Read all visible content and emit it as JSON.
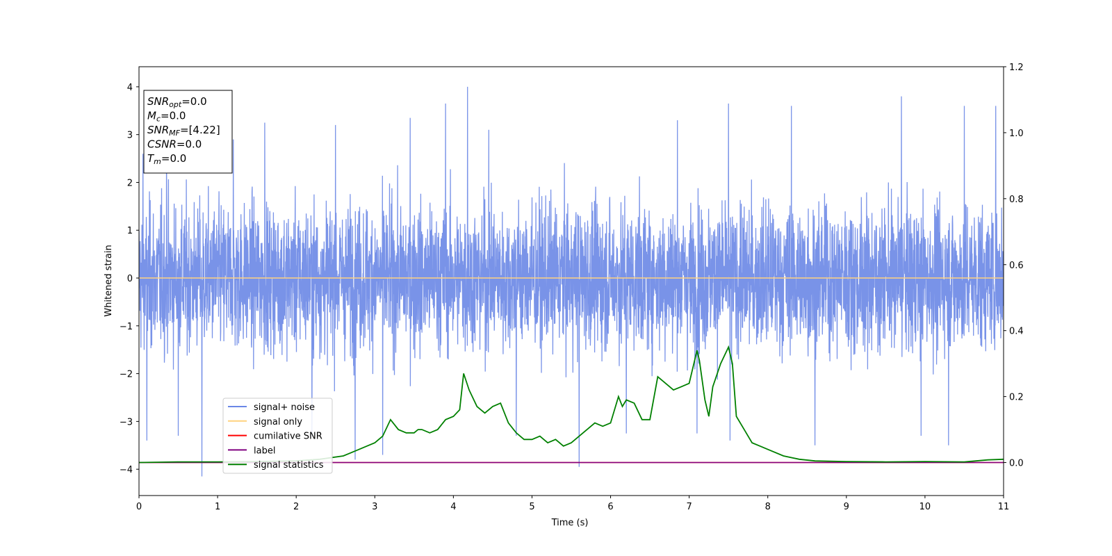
{
  "chart_data": {
    "type": "line",
    "xlabel": "Time (s)",
    "ylabel": "Whitened strain",
    "xlim": [
      0,
      11
    ],
    "ylim": [
      -4.55,
      4.42
    ],
    "ylim_right": [
      -0.1,
      1.2
    ],
    "x_ticks": [
      0,
      1,
      2,
      3,
      4,
      5,
      6,
      7,
      8,
      9,
      10,
      11
    ],
    "x_tick_labels": [
      "0",
      "1",
      "2",
      "3",
      "4",
      "5",
      "6",
      "7",
      "8",
      "9",
      "10",
      "11"
    ],
    "y_ticks": [
      -4,
      -3,
      -2,
      -1,
      0,
      1,
      2,
      3,
      4
    ],
    "y_tick_labels": [
      "−4",
      "−3",
      "−2",
      "−1",
      "0",
      "1",
      "2",
      "3",
      "4"
    ],
    "y_right_ticks": [
      0.0,
      0.2,
      0.4,
      0.6,
      0.8,
      1.0,
      1.2
    ],
    "y_right_tick_labels": [
      "0.0",
      "0.2",
      "0.4",
      "0.6",
      "0.8",
      "1.0",
      "1.2"
    ],
    "grid": false,
    "legend_position": "lower-left",
    "legend": [
      {
        "label": "signal+ noise",
        "color": "#6a87e6"
      },
      {
        "label": "signal only",
        "color": "#ffd27f"
      },
      {
        "label": "cumilative SNR",
        "color": "#ff0000"
      },
      {
        "label": "label",
        "color": "#800080"
      },
      {
        "label": "signal statistics",
        "color": "#008000"
      }
    ],
    "info_box": [
      {
        "sym": "SNR",
        "sub": "opt",
        "val": "=0.0"
      },
      {
        "sym": "M",
        "sub": "c",
        "val": "=0.0"
      },
      {
        "sym": "SNR",
        "sub": "MF",
        "val": "=[4.22]"
      },
      {
        "sym": "CSNR",
        "sub": "",
        "val": "=0.0"
      },
      {
        "sym": "T",
        "sub": "m",
        "val": "=0.0"
      }
    ],
    "series": [
      {
        "name": "signal+ noise",
        "axis": "left",
        "color": "#6a87e6",
        "description": "dense whitened noise, approximately within [-2.5, 2.5] with spikes up to about 4.0 and down to about -4.2",
        "spikes_x": [
          0.05,
          0.1,
          0.35,
          0.5,
          0.8,
          1.2,
          1.6,
          2.2,
          2.5,
          2.75,
          3.1,
          3.45,
          3.9,
          4.18,
          4.45,
          4.8,
          5.6,
          6.2,
          6.85,
          7.1,
          7.5,
          7.52,
          8.3,
          8.6,
          9.7,
          9.95,
          10.3,
          10.5,
          10.9
        ],
        "spikes_y": [
          2.6,
          -3.4,
          2.8,
          -3.3,
          -4.15,
          2.9,
          3.25,
          -3.3,
          3.2,
          -3.8,
          -3.7,
          3.35,
          3.65,
          4.0,
          3.1,
          -3.3,
          -3.95,
          -3.25,
          3.3,
          -3.25,
          3.65,
          -3.4,
          3.6,
          -3.5,
          3.8,
          -3.3,
          -3.5,
          3.6,
          3.6
        ]
      },
      {
        "name": "signal only",
        "axis": "left",
        "color": "#ffd27f",
        "x": [
          0,
          11
        ],
        "y": [
          0,
          0
        ]
      },
      {
        "name": "cumilative SNR",
        "axis": "right",
        "color": "#ff0000",
        "x": [
          0,
          11
        ],
        "y": [
          0,
          0
        ]
      },
      {
        "name": "label",
        "axis": "right",
        "color": "#800080",
        "x": [
          0,
          11
        ],
        "y": [
          0,
          0
        ]
      },
      {
        "name": "signal statistics",
        "axis": "right",
        "color": "#008000",
        "x": [
          0,
          0.5,
          1,
          1.5,
          2,
          2.3,
          2.6,
          2.7,
          2.8,
          2.9,
          3.0,
          3.1,
          3.2,
          3.3,
          3.4,
          3.5,
          3.55,
          3.6,
          3.7,
          3.8,
          3.9,
          4.0,
          4.08,
          4.13,
          4.2,
          4.3,
          4.4,
          4.5,
          4.6,
          4.7,
          4.8,
          4.9,
          5.0,
          5.1,
          5.2,
          5.3,
          5.4,
          5.5,
          5.6,
          5.7,
          5.8,
          5.9,
          6.0,
          6.1,
          6.15,
          6.2,
          6.3,
          6.4,
          6.5,
          6.6,
          6.7,
          6.8,
          6.9,
          7.0,
          7.1,
          7.13,
          7.2,
          7.25,
          7.3,
          7.4,
          7.5,
          7.55,
          7.6,
          7.7,
          7.8,
          7.9,
          8.0,
          8.2,
          8.4,
          8.6,
          9.0,
          9.5,
          10.0,
          10.5,
          10.8,
          11.0
        ],
        "y": [
          0.0,
          0.002,
          0.002,
          0.003,
          0.005,
          0.01,
          0.02,
          0.03,
          0.04,
          0.05,
          0.06,
          0.08,
          0.13,
          0.1,
          0.09,
          0.09,
          0.1,
          0.1,
          0.09,
          0.1,
          0.13,
          0.14,
          0.16,
          0.27,
          0.22,
          0.17,
          0.15,
          0.17,
          0.18,
          0.12,
          0.09,
          0.07,
          0.07,
          0.08,
          0.06,
          0.07,
          0.05,
          0.06,
          0.08,
          0.1,
          0.12,
          0.11,
          0.12,
          0.2,
          0.17,
          0.19,
          0.18,
          0.13,
          0.13,
          0.26,
          0.24,
          0.22,
          0.23,
          0.24,
          0.34,
          0.31,
          0.19,
          0.14,
          0.23,
          0.3,
          0.35,
          0.3,
          0.14,
          0.1,
          0.06,
          0.05,
          0.04,
          0.02,
          0.01,
          0.005,
          0.003,
          0.002,
          0.003,
          0.002,
          0.008,
          0.01
        ]
      }
    ]
  }
}
